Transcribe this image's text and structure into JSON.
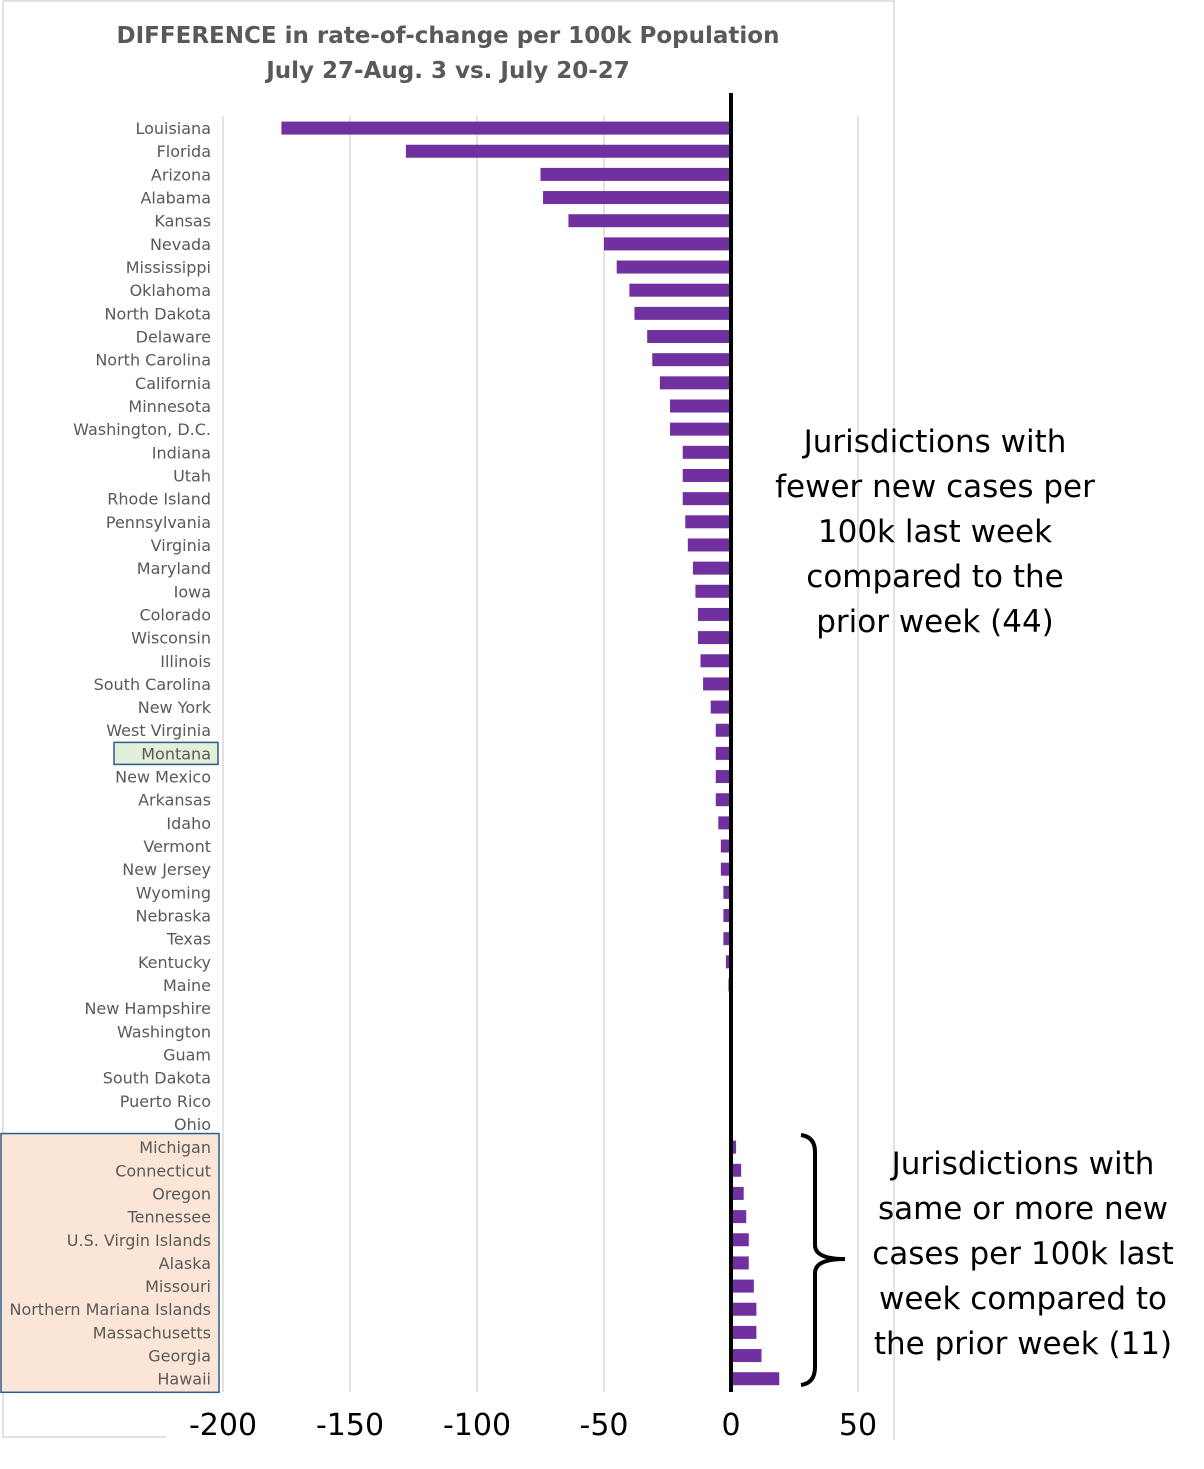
{
  "chart_data": {
    "type": "bar",
    "orientation": "horizontal",
    "title": "DIFFERENCE in rate-of-change per 100k Population",
    "subtitle": "July 27-Aug. 3 vs. July 20-27",
    "xlim": [
      -200,
      50
    ],
    "xticks": [
      "-200",
      "-150",
      "-100",
      "-50",
      "0",
      "50"
    ],
    "grid": "vertical",
    "bar_color": "#7030A0",
    "categories": [
      "Louisiana",
      "Florida",
      "Arizona",
      "Alabama",
      "Kansas",
      "Nevada",
      "Mississippi",
      "Oklahoma",
      "North Dakota",
      "Delaware",
      "North Carolina",
      "California",
      "Minnesota",
      "Washington, D.C.",
      "Indiana",
      "Utah",
      "Rhode Island",
      "Pennsylvania",
      "Virginia",
      "Maryland",
      "Iowa",
      "Colorado",
      "Wisconsin",
      "Illinois",
      "South Carolina",
      "New York",
      "West Virginia",
      "Montana",
      "New Mexico",
      "Arkansas",
      "Idaho",
      "Vermont",
      "New Jersey",
      "Wyoming",
      "Nebraska",
      "Texas",
      "Kentucky",
      "Maine",
      "New Hampshire",
      "Washington",
      "Guam",
      "South Dakota",
      "Puerto Rico",
      "Ohio",
      "Michigan",
      "Connecticut",
      "Oregon",
      "Tennessee",
      "U.S. Virgin Islands",
      "Alaska",
      "Missouri",
      "Northern Mariana Islands",
      "Massachusetts",
      "Georgia",
      "Hawaii"
    ],
    "values": [
      -177,
      -128,
      -75,
      -74,
      -64,
      -50,
      -45,
      -40,
      -38,
      -33,
      -31,
      -28,
      -24,
      -24,
      -19,
      -19,
      -19,
      -18,
      -17,
      -15,
      -14,
      -13,
      -13,
      -12,
      -11,
      -8,
      -6,
      -6,
      -6,
      -6,
      -5,
      -4,
      -4,
      -3,
      -3,
      -3,
      -2,
      -1,
      -0.5,
      -0.5,
      -0.5,
      -0.5,
      -0.5,
      0,
      2,
      4,
      5,
      6,
      7,
      7,
      9,
      10,
      10,
      12,
      19
    ],
    "highlight_single": "Montana",
    "highlight_single_color": "#E2EFDA",
    "highlight_group_color": "#FBE5D6",
    "highlight_group_border": "#2E5C8A"
  },
  "annotations": {
    "fewer": [
      "Jurisdictions with",
      "fewer new cases per",
      "100k last week",
      "compared to the",
      "prior week (44)"
    ],
    "more": [
      "Jurisdictions with",
      "same or more new",
      "cases per 100k last",
      "week compared to",
      "the prior week (11)"
    ]
  }
}
